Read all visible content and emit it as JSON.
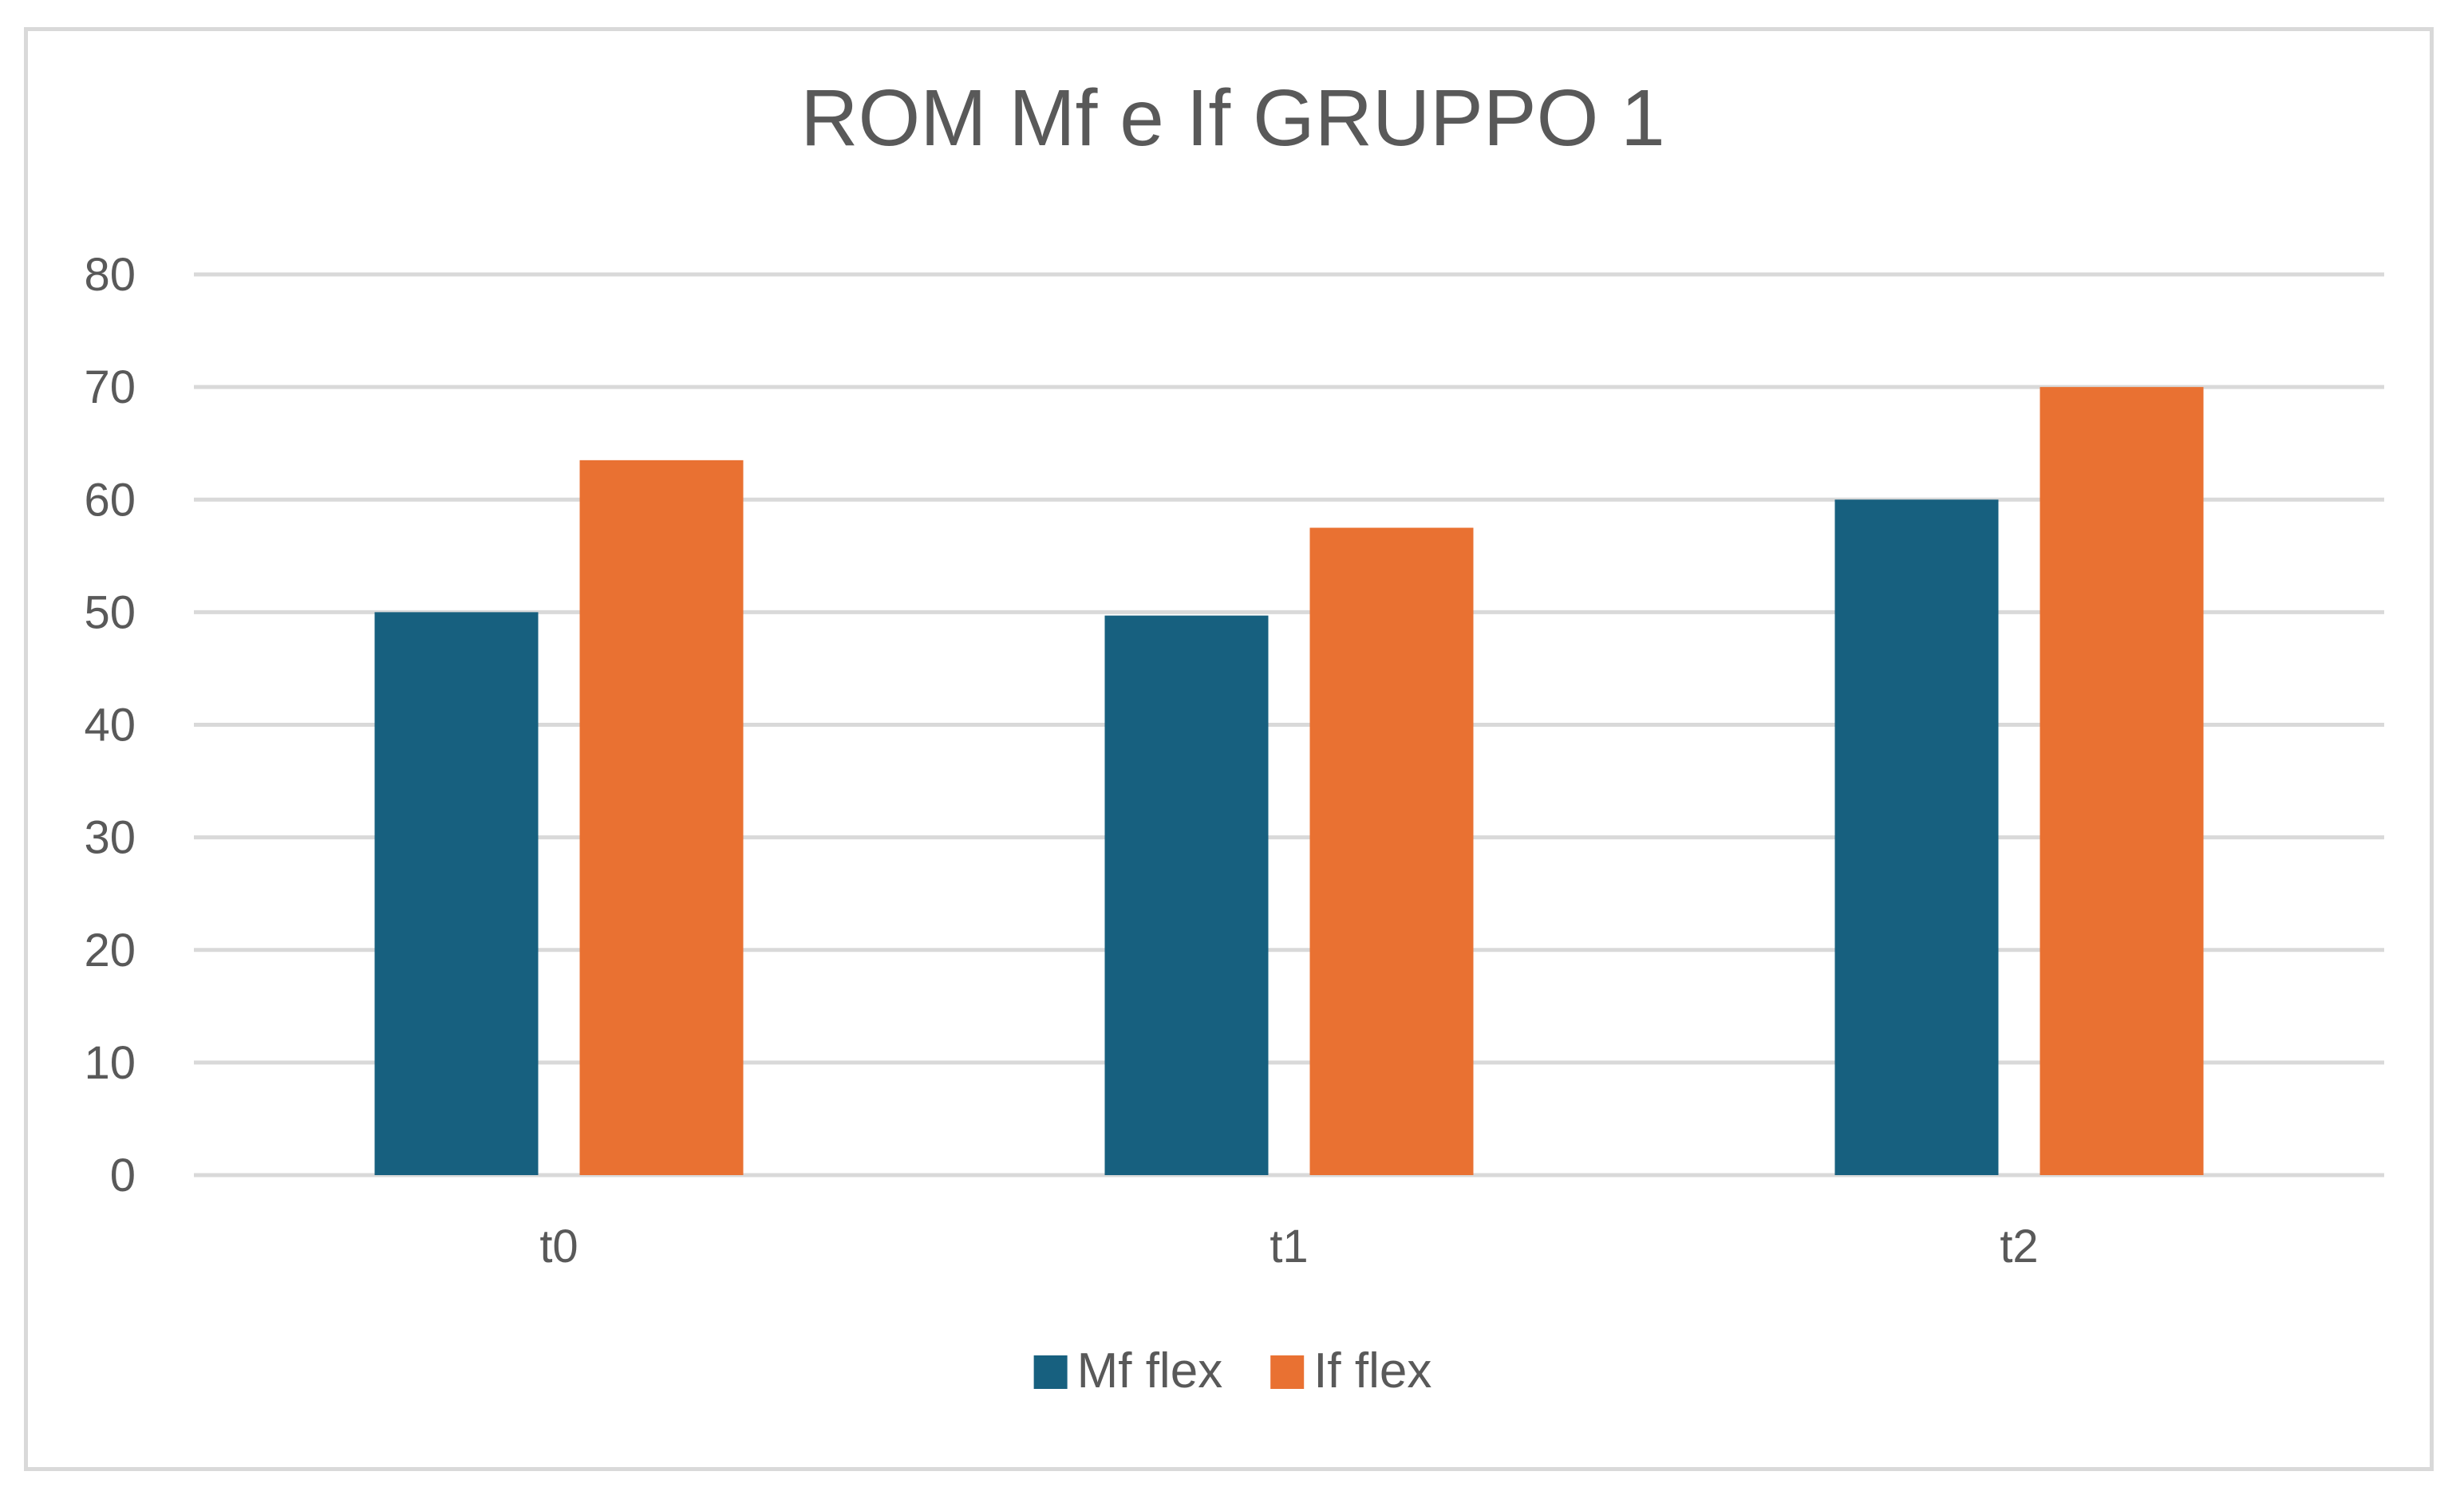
{
  "chart_data": {
    "type": "bar",
    "title": "ROM Mf e If GRUPPO 1",
    "xlabel": "",
    "ylabel": "",
    "categories": [
      "t0",
      "t1",
      "t2"
    ],
    "ylim": [
      0,
      80
    ],
    "y_ticks": [
      "0",
      "10",
      "20",
      "30",
      "40",
      "50",
      "60",
      "70",
      "80"
    ],
    "grid": true,
    "legend_position": "bottom",
    "series": [
      {
        "name": "Mf flex",
        "color": "#17607f",
        "values": [
          50,
          49.7,
          60
        ]
      },
      {
        "name": "If flex",
        "color": "#e97132",
        "values": [
          63.5,
          57.5,
          70
        ]
      }
    ]
  }
}
